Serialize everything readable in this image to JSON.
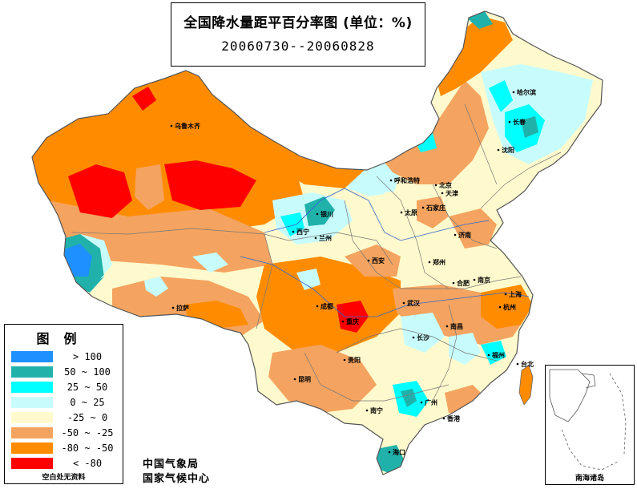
{
  "title": {
    "line1": "全国降水量距平百分率图 (单位：%)",
    "line2": "20060730--20060828"
  },
  "legend": {
    "title": "图例",
    "items": [
      {
        "label": "> 100",
        "color": "#1e90ff"
      },
      {
        "label": "50 ~ 100",
        "color": "#20b2aa"
      },
      {
        "label": "25 ~ 50",
        "color": "#00ffff"
      },
      {
        "label": "0 ~ 25",
        "color": "#c8fcfc"
      },
      {
        "label": "-25 ~ 0",
        "color": "#fffacd"
      },
      {
        "label": "-50 ~ -25",
        "color": "#f4a460"
      },
      {
        "label": "-80 ~ -50",
        "color": "#ff8c00"
      },
      {
        "label": "< -80",
        "color": "#ff0000"
      }
    ],
    "note": "空白处无资料"
  },
  "agency": {
    "line1": "中国气象局",
    "line2": "国家气候中心"
  },
  "inset_label": "南海诸岛",
  "cities": [
    "乌鲁木齐",
    "哈尔滨",
    "长春",
    "沈阳",
    "呼和浩特",
    "北京",
    "天津",
    "银川",
    "太原",
    "石家庄",
    "西宁",
    "兰州",
    "济南",
    "西安",
    "郑州",
    "合肥",
    "南京",
    "上海",
    "拉萨",
    "成都",
    "武汉",
    "杭州",
    "重庆",
    "南昌",
    "长沙",
    "福州",
    "贵阳",
    "台北",
    "昆明",
    "南宁",
    "广州",
    "香港",
    "海口"
  ]
}
